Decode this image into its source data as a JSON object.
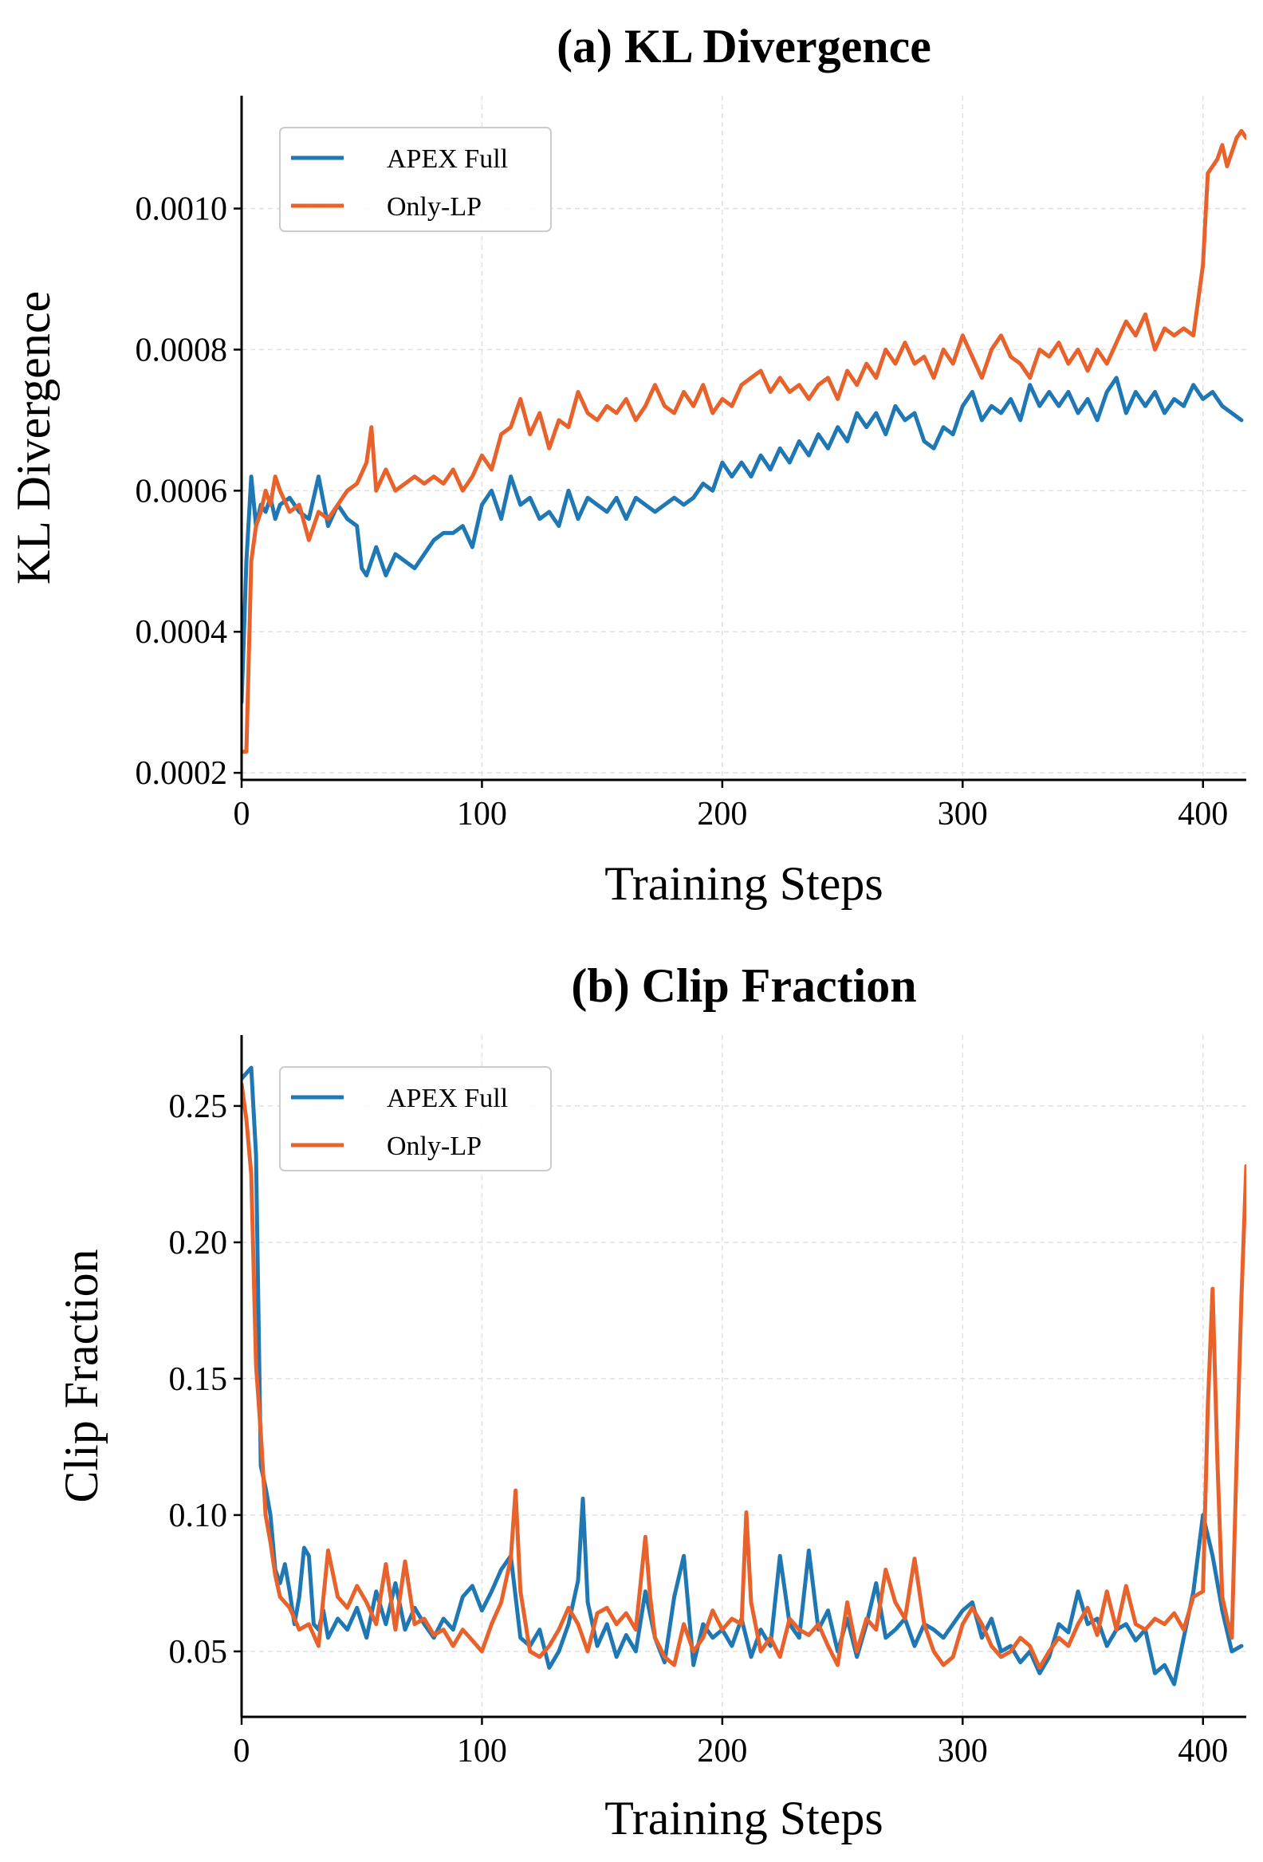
{
  "colors": {
    "apex_full": "#1f77b4",
    "only_lp": "#e8622c"
  },
  "chart_data": [
    {
      "type": "line",
      "title": "(a) KL Divergence",
      "xlabel": "Training Steps",
      "ylabel": "KL Divergence",
      "xlim": [
        0,
        418
      ],
      "ylim": [
        0.00019,
        0.00116
      ],
      "xticks": [
        0,
        100,
        200,
        300,
        400
      ],
      "xtick_labels": [
        "0",
        "100",
        "200",
        "300",
        "400"
      ],
      "yticks": [
        0.0002,
        0.0004,
        0.0006,
        0.0008,
        0.001
      ],
      "ytick_labels": [
        "0.0002",
        "0.0004",
        "0.0006",
        "0.0008",
        "0.0010"
      ],
      "grid": true,
      "legend": "top-left",
      "series": [
        {
          "name": "APEX Full",
          "color_key": "apex_full",
          "x": [
            0,
            2,
            4,
            6,
            8,
            10,
            12,
            14,
            16,
            20,
            24,
            28,
            32,
            36,
            40,
            44,
            48,
            50,
            52,
            56,
            60,
            64,
            68,
            72,
            76,
            80,
            84,
            88,
            92,
            96,
            100,
            104,
            108,
            112,
            116,
            120,
            124,
            128,
            132,
            136,
            140,
            144,
            148,
            152,
            156,
            160,
            164,
            168,
            172,
            176,
            180,
            184,
            188,
            192,
            196,
            200,
            204,
            208,
            212,
            216,
            220,
            224,
            228,
            232,
            236,
            240,
            244,
            248,
            252,
            256,
            260,
            264,
            268,
            272,
            276,
            280,
            284,
            288,
            292,
            296,
            300,
            304,
            308,
            312,
            316,
            320,
            324,
            328,
            332,
            336,
            340,
            344,
            348,
            352,
            356,
            360,
            364,
            368,
            372,
            376,
            380,
            384,
            388,
            392,
            396,
            400,
            404,
            408,
            412,
            416
          ],
          "values": [
            0.0003,
            0.0005,
            0.00062,
            0.00055,
            0.00058,
            0.00057,
            0.00059,
            0.00056,
            0.00058,
            0.00059,
            0.00057,
            0.00056,
            0.00062,
            0.00055,
            0.00058,
            0.00056,
            0.00055,
            0.00049,
            0.00048,
            0.00052,
            0.00048,
            0.00051,
            0.0005,
            0.00049,
            0.00051,
            0.00053,
            0.00054,
            0.00054,
            0.00055,
            0.00052,
            0.00058,
            0.0006,
            0.00056,
            0.00062,
            0.00058,
            0.00059,
            0.00056,
            0.00057,
            0.00055,
            0.0006,
            0.00056,
            0.00059,
            0.00058,
            0.00057,
            0.00059,
            0.00056,
            0.00059,
            0.00058,
            0.00057,
            0.00058,
            0.00059,
            0.00058,
            0.00059,
            0.00061,
            0.0006,
            0.00064,
            0.00062,
            0.00064,
            0.00062,
            0.00065,
            0.00063,
            0.00066,
            0.00064,
            0.00067,
            0.00065,
            0.00068,
            0.00066,
            0.00069,
            0.00067,
            0.00071,
            0.00069,
            0.00071,
            0.00068,
            0.00072,
            0.0007,
            0.00071,
            0.00067,
            0.00066,
            0.00069,
            0.00068,
            0.00072,
            0.00074,
            0.0007,
            0.00072,
            0.00071,
            0.00073,
            0.0007,
            0.00075,
            0.00072,
            0.00074,
            0.00072,
            0.00074,
            0.00071,
            0.00073,
            0.0007,
            0.00074,
            0.00076,
            0.00071,
            0.00074,
            0.00072,
            0.00074,
            0.00071,
            0.00073,
            0.00072,
            0.00075,
            0.00073,
            0.00074,
            0.00072,
            0.00071,
            0.0007
          ]
        },
        {
          "name": "Only-LP",
          "color_key": "only_lp",
          "x": [
            0,
            2,
            4,
            6,
            8,
            10,
            12,
            14,
            16,
            20,
            24,
            28,
            32,
            36,
            40,
            44,
            48,
            52,
            54,
            56,
            60,
            64,
            68,
            72,
            76,
            80,
            84,
            88,
            92,
            96,
            100,
            104,
            108,
            112,
            116,
            120,
            124,
            128,
            132,
            136,
            140,
            144,
            148,
            152,
            156,
            160,
            164,
            168,
            172,
            176,
            180,
            184,
            188,
            192,
            196,
            200,
            204,
            208,
            212,
            216,
            220,
            224,
            228,
            232,
            236,
            240,
            244,
            248,
            252,
            256,
            260,
            264,
            268,
            272,
            276,
            280,
            284,
            288,
            292,
            296,
            300,
            304,
            308,
            312,
            316,
            320,
            324,
            328,
            332,
            336,
            340,
            344,
            348,
            352,
            356,
            360,
            364,
            368,
            372,
            376,
            380,
            384,
            388,
            392,
            396,
            400,
            402,
            404,
            406,
            408,
            410,
            412,
            414,
            416,
            418
          ],
          "values": [
            0.00023,
            0.00023,
            0.0005,
            0.00055,
            0.00057,
            0.0006,
            0.00058,
            0.00062,
            0.0006,
            0.00057,
            0.00058,
            0.00053,
            0.00057,
            0.00056,
            0.00058,
            0.0006,
            0.00061,
            0.00064,
            0.00069,
            0.0006,
            0.00063,
            0.0006,
            0.00061,
            0.00062,
            0.00061,
            0.00062,
            0.00061,
            0.00063,
            0.0006,
            0.00062,
            0.00065,
            0.00063,
            0.00068,
            0.00069,
            0.00073,
            0.00068,
            0.00071,
            0.00066,
            0.0007,
            0.00069,
            0.00074,
            0.00071,
            0.0007,
            0.00072,
            0.00071,
            0.00073,
            0.0007,
            0.00072,
            0.00075,
            0.00072,
            0.00071,
            0.00074,
            0.00072,
            0.00075,
            0.00071,
            0.00073,
            0.00072,
            0.00075,
            0.00076,
            0.00077,
            0.00074,
            0.00076,
            0.00074,
            0.00075,
            0.00073,
            0.00075,
            0.00076,
            0.00073,
            0.00077,
            0.00075,
            0.00078,
            0.00076,
            0.0008,
            0.00078,
            0.00081,
            0.00078,
            0.00079,
            0.00076,
            0.0008,
            0.00078,
            0.00082,
            0.00079,
            0.00076,
            0.0008,
            0.00082,
            0.00079,
            0.00078,
            0.00076,
            0.0008,
            0.00079,
            0.00081,
            0.00078,
            0.0008,
            0.00077,
            0.0008,
            0.00078,
            0.00081,
            0.00084,
            0.00082,
            0.00085,
            0.0008,
            0.00083,
            0.00082,
            0.00083,
            0.00082,
            0.00092,
            0.00105,
            0.00106,
            0.00107,
            0.00109,
            0.00106,
            0.00108,
            0.0011,
            0.00111,
            0.0011
          ]
        }
      ]
    },
    {
      "type": "line",
      "title": "(b) Clip Fraction",
      "xlabel": "Training Steps",
      "ylabel": "Clip Fraction",
      "xlim": [
        0,
        418
      ],
      "ylim": [
        0.026,
        0.276
      ],
      "xticks": [
        0,
        100,
        200,
        300,
        400
      ],
      "xtick_labels": [
        "0",
        "100",
        "200",
        "300",
        "400"
      ],
      "yticks": [
        0.05,
        0.1,
        0.15,
        0.2,
        0.25
      ],
      "ytick_labels": [
        "0.05",
        "0.10",
        "0.15",
        "0.20",
        "0.25"
      ],
      "grid": true,
      "legend": "top-left",
      "series": [
        {
          "name": "APEX Full",
          "color_key": "apex_full",
          "x": [
            0,
            2,
            4,
            6,
            8,
            10,
            12,
            14,
            16,
            18,
            20,
            22,
            24,
            26,
            28,
            30,
            32,
            34,
            36,
            40,
            44,
            48,
            52,
            56,
            60,
            64,
            68,
            72,
            76,
            80,
            84,
            88,
            92,
            96,
            100,
            104,
            108,
            112,
            116,
            120,
            124,
            128,
            132,
            136,
            140,
            142,
            144,
            148,
            152,
            156,
            160,
            164,
            168,
            172,
            176,
            180,
            184,
            188,
            192,
            196,
            200,
            204,
            208,
            212,
            216,
            220,
            224,
            228,
            232,
            236,
            240,
            244,
            248,
            252,
            256,
            260,
            264,
            268,
            272,
            276,
            280,
            284,
            288,
            292,
            296,
            300,
            304,
            308,
            312,
            316,
            320,
            324,
            328,
            332,
            336,
            340,
            344,
            348,
            352,
            356,
            360,
            364,
            368,
            372,
            376,
            380,
            384,
            388,
            392,
            396,
            400,
            404,
            408,
            412,
            416
          ],
          "values": [
            0.26,
            0.262,
            0.264,
            0.232,
            0.118,
            0.11,
            0.1,
            0.08,
            0.075,
            0.082,
            0.072,
            0.06,
            0.07,
            0.088,
            0.085,
            0.06,
            0.058,
            0.065,
            0.055,
            0.062,
            0.058,
            0.066,
            0.055,
            0.072,
            0.06,
            0.075,
            0.058,
            0.066,
            0.06,
            0.055,
            0.062,
            0.058,
            0.07,
            0.074,
            0.065,
            0.072,
            0.08,
            0.085,
            0.055,
            0.052,
            0.058,
            0.044,
            0.05,
            0.06,
            0.076,
            0.106,
            0.068,
            0.052,
            0.06,
            0.048,
            0.056,
            0.05,
            0.072,
            0.055,
            0.046,
            0.07,
            0.085,
            0.045,
            0.06,
            0.055,
            0.058,
            0.052,
            0.062,
            0.048,
            0.058,
            0.052,
            0.085,
            0.06,
            0.055,
            0.087,
            0.058,
            0.065,
            0.05,
            0.062,
            0.048,
            0.06,
            0.075,
            0.055,
            0.058,
            0.062,
            0.052,
            0.06,
            0.058,
            0.055,
            0.06,
            0.065,
            0.068,
            0.055,
            0.062,
            0.05,
            0.052,
            0.046,
            0.05,
            0.042,
            0.048,
            0.06,
            0.057,
            0.072,
            0.06,
            0.062,
            0.052,
            0.058,
            0.06,
            0.054,
            0.058,
            0.042,
            0.045,
            0.038,
            0.055,
            0.072,
            0.1,
            0.085,
            0.065,
            0.05,
            0.052
          ]
        },
        {
          "name": "Only-LP",
          "color_key": "only_lp",
          "x": [
            0,
            2,
            4,
            6,
            8,
            10,
            12,
            14,
            16,
            20,
            24,
            28,
            32,
            36,
            40,
            44,
            48,
            52,
            56,
            60,
            64,
            68,
            72,
            76,
            80,
            84,
            88,
            92,
            96,
            100,
            104,
            108,
            112,
            114,
            116,
            120,
            124,
            128,
            132,
            136,
            140,
            144,
            148,
            152,
            156,
            160,
            164,
            168,
            170,
            172,
            176,
            180,
            184,
            188,
            192,
            196,
            200,
            204,
            208,
            210,
            212,
            216,
            220,
            224,
            228,
            232,
            236,
            240,
            244,
            248,
            252,
            256,
            260,
            264,
            268,
            272,
            276,
            280,
            284,
            288,
            292,
            296,
            300,
            304,
            308,
            312,
            316,
            320,
            324,
            328,
            332,
            336,
            340,
            344,
            348,
            352,
            356,
            360,
            364,
            368,
            372,
            376,
            380,
            384,
            388,
            392,
            396,
            400,
            402,
            404,
            406,
            408,
            410,
            412,
            414,
            416,
            418
          ],
          "values": [
            0.258,
            0.245,
            0.225,
            0.155,
            0.13,
            0.1,
            0.09,
            0.078,
            0.07,
            0.066,
            0.058,
            0.06,
            0.052,
            0.087,
            0.07,
            0.066,
            0.074,
            0.068,
            0.06,
            0.082,
            0.058,
            0.083,
            0.06,
            0.062,
            0.056,
            0.058,
            0.052,
            0.058,
            0.054,
            0.05,
            0.06,
            0.068,
            0.084,
            0.109,
            0.072,
            0.05,
            0.048,
            0.052,
            0.058,
            0.066,
            0.06,
            0.05,
            0.064,
            0.066,
            0.06,
            0.064,
            0.058,
            0.092,
            0.07,
            0.055,
            0.048,
            0.045,
            0.06,
            0.05,
            0.055,
            0.065,
            0.058,
            0.062,
            0.06,
            0.101,
            0.068,
            0.05,
            0.055,
            0.048,
            0.062,
            0.058,
            0.056,
            0.06,
            0.052,
            0.045,
            0.068,
            0.05,
            0.062,
            0.058,
            0.08,
            0.068,
            0.062,
            0.084,
            0.06,
            0.05,
            0.045,
            0.048,
            0.06,
            0.066,
            0.06,
            0.052,
            0.048,
            0.05,
            0.055,
            0.052,
            0.044,
            0.05,
            0.055,
            0.052,
            0.06,
            0.066,
            0.056,
            0.072,
            0.058,
            0.074,
            0.06,
            0.058,
            0.062,
            0.06,
            0.064,
            0.058,
            0.07,
            0.072,
            0.14,
            0.183,
            0.12,
            0.07,
            0.062,
            0.055,
            0.12,
            0.18,
            0.228
          ]
        }
      ]
    }
  ]
}
